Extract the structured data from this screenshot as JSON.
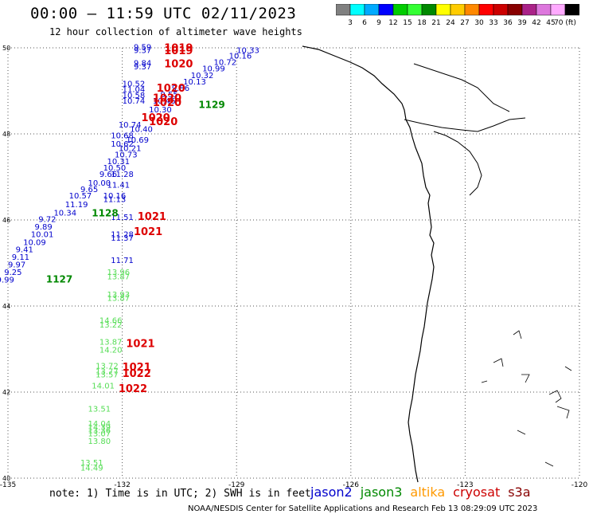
{
  "header": {
    "title": "00:00 – 11:59 UTC 02/11/2023",
    "subtitle": "12 hour collection of altimeter wave heights"
  },
  "colorbar": {
    "colors": [
      "#808080",
      "#00ffff",
      "#00aaff",
      "#0000ff",
      "#00cc00",
      "#33ff33",
      "#008800",
      "#ffff00",
      "#ffcc00",
      "#ff8800",
      "#ff0000",
      "#cc0000",
      "#880000",
      "#aa2288",
      "#dd77dd",
      "#ffaaff",
      "#000000"
    ],
    "labels": [
      "3",
      "6",
      "9",
      "12",
      "15",
      "18",
      "21",
      "24",
      "27",
      "30",
      "33",
      "36",
      "39",
      "42",
      "45",
      "70 (ft)"
    ]
  },
  "axes": {
    "lon_labels": [
      "-135",
      "-132",
      "-129",
      "-126",
      "-123",
      "-120"
    ],
    "lat_labels": [
      "50",
      "48",
      "46",
      "44",
      "42",
      "40"
    ]
  },
  "chart_data": {
    "type": "scatter",
    "xlim": [
      -135,
      -120
    ],
    "ylim": [
      40,
      50
    ],
    "swh_blue": [
      {
        "lon": -131.7,
        "lat": 49.95,
        "v": "9.59"
      },
      {
        "lon": -131.7,
        "lat": 49.88,
        "v": "9.37"
      },
      {
        "lon": -129.0,
        "lat": 49.88,
        "v": "10.33"
      },
      {
        "lon": -129.2,
        "lat": 49.75,
        "v": "10.16"
      },
      {
        "lon": -129.6,
        "lat": 49.6,
        "v": "10.72"
      },
      {
        "lon": -129.9,
        "lat": 49.45,
        "v": "10.99"
      },
      {
        "lon": -130.2,
        "lat": 49.3,
        "v": "10.32"
      },
      {
        "lon": -130.4,
        "lat": 49.15,
        "v": "10.13"
      },
      {
        "lon": -130.7,
        "lat": 49.0,
        "v": "9.86"
      },
      {
        "lon": -131.0,
        "lat": 48.85,
        "v": "9.55"
      },
      {
        "lon": -131.7,
        "lat": 49.58,
        "v": "9.84"
      },
      {
        "lon": -131.7,
        "lat": 49.5,
        "v": "9.37"
      },
      {
        "lon": -132.0,
        "lat": 49.1,
        "v": "10.52"
      },
      {
        "lon": -132.0,
        "lat": 48.97,
        "v": "11.04"
      },
      {
        "lon": -132.0,
        "lat": 48.83,
        "v": "10.58"
      },
      {
        "lon": -132.0,
        "lat": 48.7,
        "v": "10.74"
      },
      {
        "lon": -131.2,
        "lat": 48.7,
        "v": "10.46"
      },
      {
        "lon": -131.3,
        "lat": 48.5,
        "v": "10.30"
      },
      {
        "lon": -132.1,
        "lat": 48.15,
        "v": "10.74"
      },
      {
        "lon": -131.8,
        "lat": 48.05,
        "v": "10.40"
      },
      {
        "lon": -132.3,
        "lat": 47.9,
        "v": "10.68"
      },
      {
        "lon": -131.9,
        "lat": 47.8,
        "v": "10.69"
      },
      {
        "lon": -132.3,
        "lat": 47.7,
        "v": "10.62"
      },
      {
        "lon": -132.1,
        "lat": 47.6,
        "v": "10.21"
      },
      {
        "lon": -132.2,
        "lat": 47.45,
        "v": "10.73"
      },
      {
        "lon": -132.4,
        "lat": 47.3,
        "v": "10.31"
      },
      {
        "lon": -132.5,
        "lat": 47.15,
        "v": "10.50"
      },
      {
        "lon": -132.6,
        "lat": 47.0,
        "v": "9.66"
      },
      {
        "lon": -132.3,
        "lat": 47.0,
        "v": "11.28"
      },
      {
        "lon": -132.9,
        "lat": 46.8,
        "v": "10.00"
      },
      {
        "lon": -132.4,
        "lat": 46.75,
        "v": "11.41"
      },
      {
        "lon": -133.1,
        "lat": 46.65,
        "v": "9.65"
      },
      {
        "lon": -133.4,
        "lat": 46.5,
        "v": "10.57"
      },
      {
        "lon": -132.5,
        "lat": 46.5,
        "v": "10.16"
      },
      {
        "lon": -132.5,
        "lat": 46.42,
        "v": "11.13"
      },
      {
        "lon": -133.5,
        "lat": 46.3,
        "v": "11.19"
      },
      {
        "lon": -133.8,
        "lat": 46.1,
        "v": "10.34"
      },
      {
        "lon": -134.2,
        "lat": 45.95,
        "v": "9.72"
      },
      {
        "lon": -134.3,
        "lat": 45.78,
        "v": "9.89"
      },
      {
        "lon": -134.4,
        "lat": 45.6,
        "v": "10.01"
      },
      {
        "lon": -134.6,
        "lat": 45.42,
        "v": "10.09"
      },
      {
        "lon": -134.8,
        "lat": 45.25,
        "v": "9.41"
      },
      {
        "lon": -134.9,
        "lat": 45.07,
        "v": "9.11"
      },
      {
        "lon": -135.0,
        "lat": 44.9,
        "v": "9.97"
      },
      {
        "lon": -135.1,
        "lat": 44.72,
        "v": "9.25"
      },
      {
        "lon": -135.3,
        "lat": 44.55,
        "v": "9.99"
      },
      {
        "lon": -132.3,
        "lat": 46.0,
        "v": "11.51"
      },
      {
        "lon": -132.3,
        "lat": 45.6,
        "v": "11.28"
      },
      {
        "lon": -132.3,
        "lat": 45.52,
        "v": "11.37"
      },
      {
        "lon": -132.3,
        "lat": 45.0,
        "v": "11.71"
      }
    ],
    "swh_green": [
      {
        "lon": -132.4,
        "lat": 44.72,
        "v": "13.96"
      },
      {
        "lon": -132.4,
        "lat": 44.62,
        "v": "13.87"
      },
      {
        "lon": -132.4,
        "lat": 44.2,
        "v": "13.93"
      },
      {
        "lon": -132.4,
        "lat": 44.12,
        "v": "13.87"
      },
      {
        "lon": -132.6,
        "lat": 43.6,
        "v": "14.66"
      },
      {
        "lon": -132.6,
        "lat": 43.5,
        "v": "13.22"
      },
      {
        "lon": -132.6,
        "lat": 43.1,
        "v": "13.87"
      },
      {
        "lon": -132.6,
        "lat": 42.92,
        "v": "14.20"
      },
      {
        "lon": -132.7,
        "lat": 42.55,
        "v": "13.72"
      },
      {
        "lon": -132.7,
        "lat": 42.42,
        "v": "13.77"
      },
      {
        "lon": -132.7,
        "lat": 42.34,
        "v": "13.57"
      },
      {
        "lon": -132.8,
        "lat": 42.08,
        "v": "14.01"
      },
      {
        "lon": -132.9,
        "lat": 41.55,
        "v": "13.51"
      },
      {
        "lon": -132.9,
        "lat": 41.2,
        "v": "14.04"
      },
      {
        "lon": -132.9,
        "lat": 41.12,
        "v": "14.39"
      },
      {
        "lon": -132.9,
        "lat": 41.05,
        "v": "13.36"
      },
      {
        "lon": -132.9,
        "lat": 40.97,
        "v": "13.07"
      },
      {
        "lon": -132.9,
        "lat": 40.8,
        "v": "13.80"
      },
      {
        "lon": -133.1,
        "lat": 40.3,
        "v": "13.51"
      },
      {
        "lon": -133.1,
        "lat": 40.18,
        "v": "14.49"
      }
    ],
    "pressure_red": [
      {
        "lon": -130.9,
        "lat": 49.92,
        "v": "1019"
      },
      {
        "lon": -130.9,
        "lat": 49.85,
        "v": "1019"
      },
      {
        "lon": -130.9,
        "lat": 49.55,
        "v": "1020"
      },
      {
        "lon": -131.1,
        "lat": 48.98,
        "v": "1020"
      },
      {
        "lon": -131.2,
        "lat": 48.75,
        "v": "1020"
      },
      {
        "lon": -131.2,
        "lat": 48.65,
        "v": "1020"
      },
      {
        "lon": -131.5,
        "lat": 48.3,
        "v": "1020"
      },
      {
        "lon": -131.3,
        "lat": 48.2,
        "v": "1020"
      },
      {
        "lon": -131.6,
        "lat": 46.0,
        "v": "1021"
      },
      {
        "lon": -131.7,
        "lat": 45.65,
        "v": "1021"
      },
      {
        "lon": -131.9,
        "lat": 43.05,
        "v": "1021"
      },
      {
        "lon": -132.0,
        "lat": 42.5,
        "v": "1021"
      },
      {
        "lon": -132.0,
        "lat": 42.35,
        "v": "1022"
      },
      {
        "lon": -132.1,
        "lat": 42.0,
        "v": "1022"
      }
    ],
    "pressure_green": [
      {
        "lon": -130.0,
        "lat": 48.6,
        "v": "1129"
      },
      {
        "lon": -132.8,
        "lat": 46.08,
        "v": "1128"
      },
      {
        "lon": -134.0,
        "lat": 44.55,
        "v": "1127"
      }
    ]
  },
  "note": "note:  1) Time is in UTC; 2) SWH is in feet",
  "legend": [
    {
      "label": "jason2",
      "color": "#0000cc"
    },
    {
      "label": "jason3",
      "color": "#008800"
    },
    {
      "label": "altika",
      "color": "#ff9900"
    },
    {
      "label": "cryosat",
      "color": "#cc0000"
    },
    {
      "label": "s3a",
      "color": "#880000"
    }
  ],
  "footer": "NOAA/NESDIS Center for Satellite Applications and Research    Feb 13 08:29:09 UTC 2023"
}
